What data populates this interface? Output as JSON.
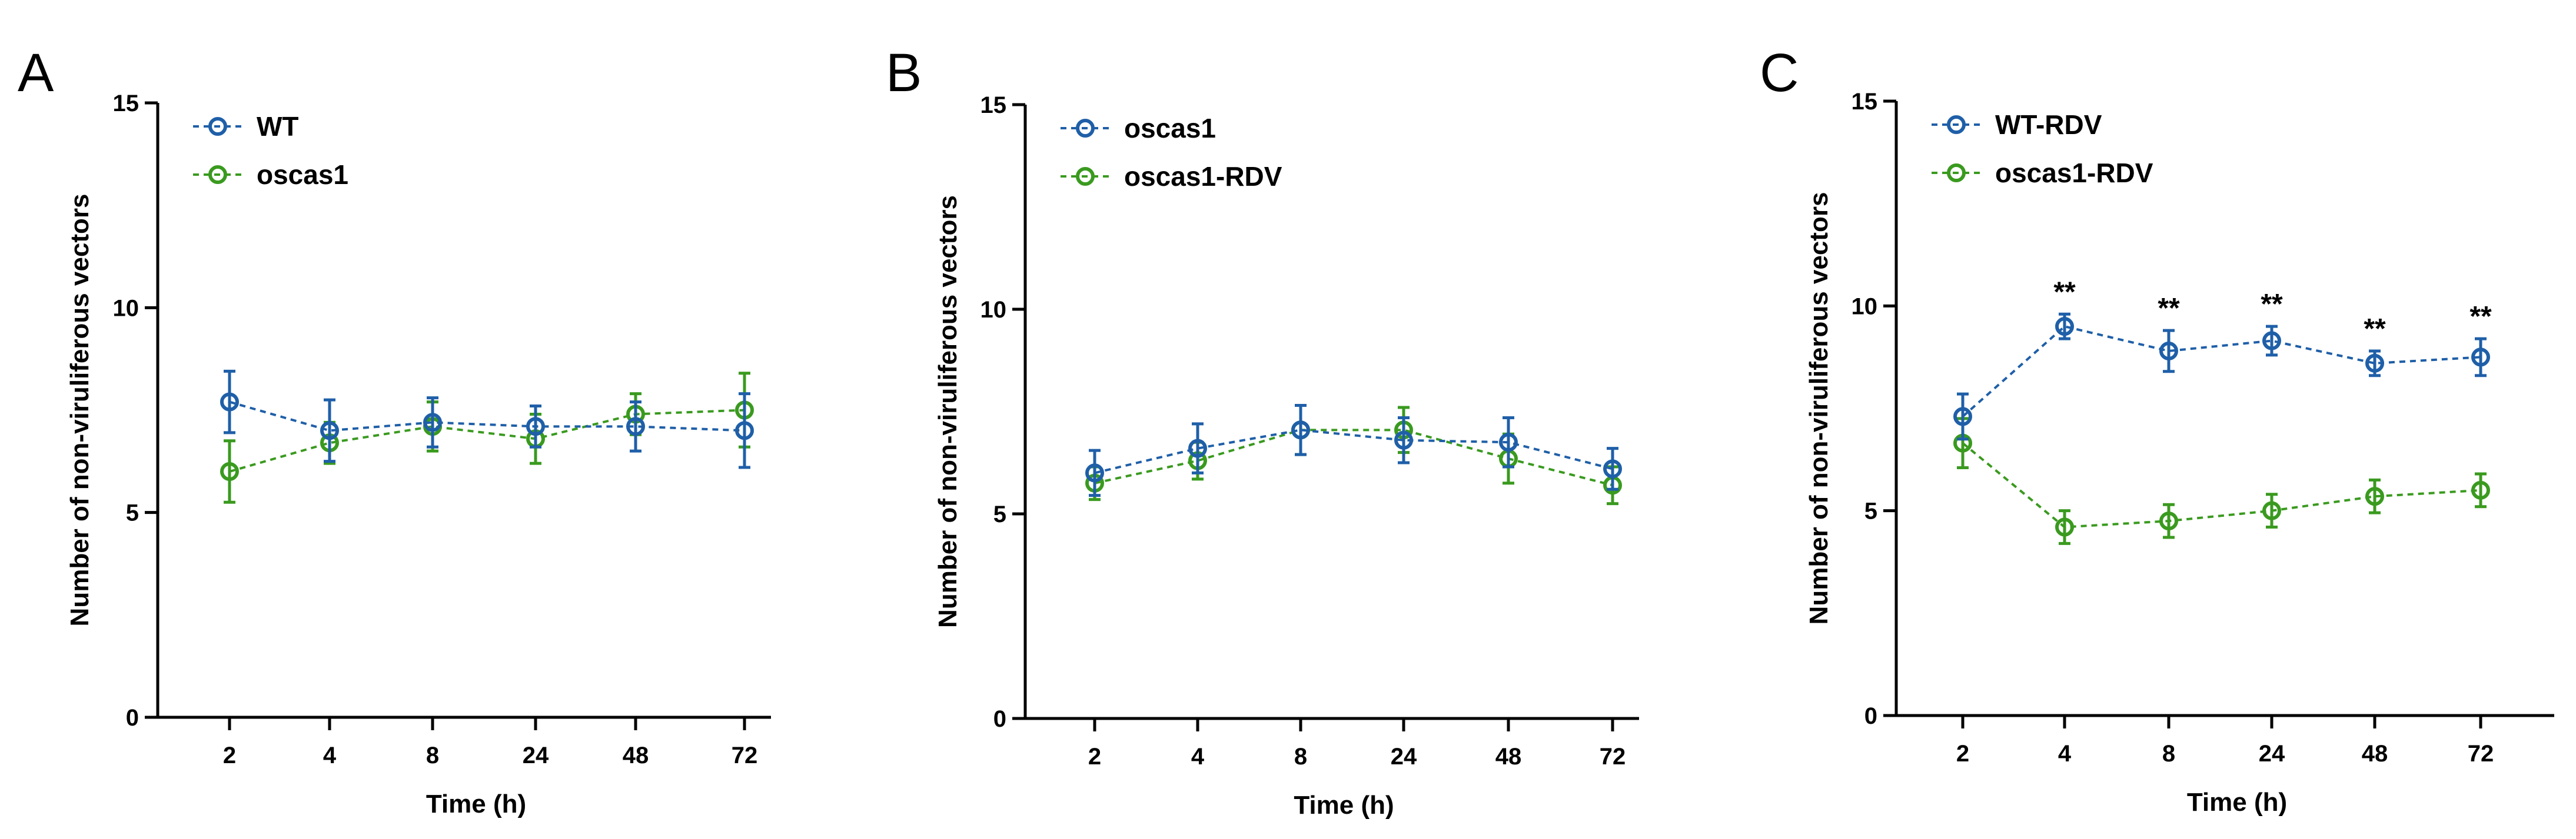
{
  "chart_data": [
    {
      "panel": "A",
      "type": "line",
      "xlabel": "Time (h)",
      "ylabel": "Number of non-viruliferous vectors",
      "categories": [
        "2",
        "4",
        "8",
        "24",
        "48",
        "72"
      ],
      "ylim": [
        0,
        15
      ],
      "yticks": [
        0,
        5,
        10,
        15
      ],
      "legend_position": "top-left",
      "series": [
        {
          "name": "WT",
          "color": "#1f5fa8",
          "values": [
            7.7,
            7.0,
            7.2,
            7.1,
            7.1,
            7.0
          ],
          "errors": [
            0.75,
            0.75,
            0.6,
            0.5,
            0.6,
            0.9
          ]
        },
        {
          "name": "oscas1",
          "color": "#3a9a1f",
          "values": [
            6.0,
            6.7,
            7.1,
            6.8,
            7.4,
            7.5
          ],
          "errors": [
            0.75,
            0.5,
            0.6,
            0.6,
            0.5,
            0.9
          ]
        }
      ],
      "annotations": []
    },
    {
      "panel": "B",
      "type": "line",
      "xlabel": "Time (h)",
      "ylabel": "Number of non-viruliferous vectors",
      "categories": [
        "2",
        "4",
        "8",
        "24",
        "48",
        "72"
      ],
      "ylim": [
        0,
        15
      ],
      "yticks": [
        0,
        5,
        10,
        15
      ],
      "legend_position": "top-left",
      "series": [
        {
          "name": "oscas1",
          "color": "#1f5fa8",
          "values": [
            6.0,
            6.6,
            7.05,
            6.8,
            6.75,
            6.1
          ],
          "errors": [
            0.55,
            0.6,
            0.6,
            0.55,
            0.6,
            0.5
          ]
        },
        {
          "name": "oscas1-RDV",
          "color": "#3a9a1f",
          "values": [
            5.75,
            6.3,
            7.05,
            7.05,
            6.35,
            5.7
          ],
          "errors": [
            0.4,
            0.45,
            0.6,
            0.55,
            0.6,
            0.45
          ]
        }
      ],
      "annotations": []
    },
    {
      "panel": "C",
      "type": "line",
      "xlabel": "Time (h)",
      "ylabel": "Number of non-viruliferous vectors",
      "categories": [
        "2",
        "4",
        "8",
        "24",
        "48",
        "72"
      ],
      "ylim": [
        0,
        15
      ],
      "yticks": [
        0,
        5,
        10,
        15
      ],
      "legend_position": "top-left",
      "series": [
        {
          "name": "WT-RDV",
          "color": "#1f5fa8",
          "values": [
            7.3,
            9.5,
            8.9,
            9.15,
            8.6,
            8.75
          ],
          "errors": [
            0.55,
            0.3,
            0.5,
            0.35,
            0.3,
            0.45
          ]
        },
        {
          "name": "oscas1-RDV",
          "color": "#3a9a1f",
          "values": [
            6.65,
            4.6,
            4.75,
            5.0,
            5.35,
            5.5
          ],
          "errors": [
            0.6,
            0.4,
            0.4,
            0.4,
            0.4,
            0.4
          ]
        }
      ],
      "annotations": [
        {
          "category": "4",
          "text": "**"
        },
        {
          "category": "8",
          "text": "**"
        },
        {
          "category": "24",
          "text": "**"
        },
        {
          "category": "48",
          "text": "**"
        },
        {
          "category": "72",
          "text": "**"
        }
      ]
    }
  ]
}
